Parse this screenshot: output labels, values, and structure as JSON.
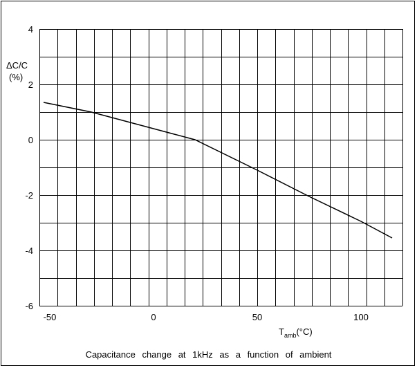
{
  "chart_data": {
    "type": "line",
    "title": "",
    "caption": "Capacitance change at 1kHz as a function of ambient",
    "ylabel_line1": "ΔC/C",
    "ylabel_line2": "(%)",
    "xlabel_main": "T",
    "xlabel_sub": "amb",
    "xlabel_unit": "(°C)",
    "xlim": [
      -55,
      120
    ],
    "ylim": [
      -6,
      4
    ],
    "x_ticks": [
      -50,
      0,
      50,
      100
    ],
    "y_ticks": [
      4,
      2,
      0,
      -2,
      -4,
      -6
    ],
    "x_grid_step": 8.75,
    "y_grid_step": 1,
    "grid": true,
    "series": [
      {
        "x": [
          -53,
          -30,
          0,
          20,
          50,
          75,
          100,
          115
        ],
        "y": [
          1.35,
          1.0,
          0.4,
          0.0,
          -1.1,
          -2.05,
          -2.95,
          -3.55
        ]
      }
    ],
    "line_color": "#000000"
  }
}
